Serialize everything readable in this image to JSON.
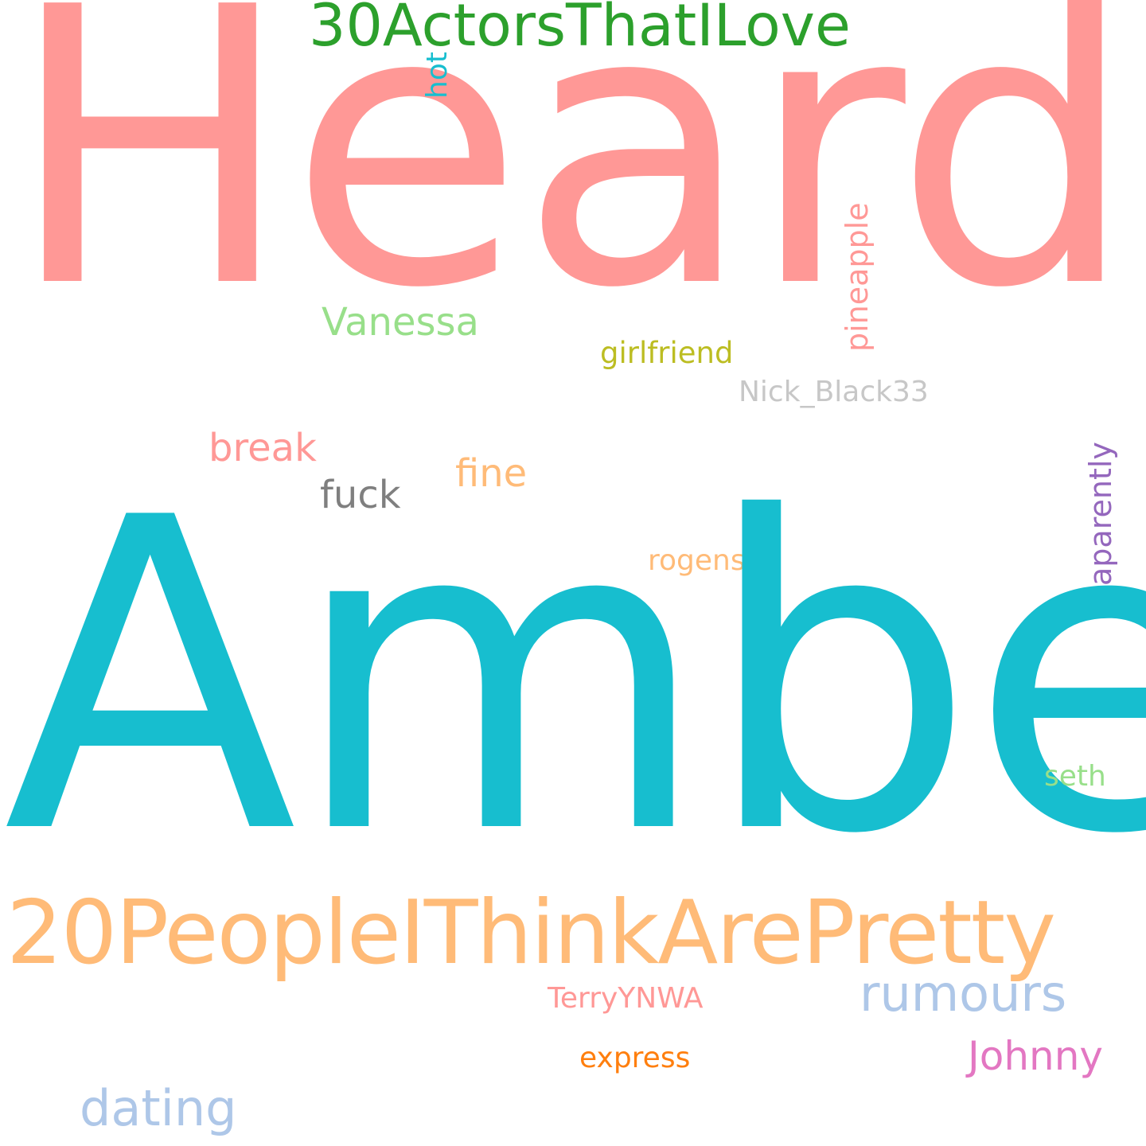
{
  "words": [
    {
      "key": "heard",
      "text": "Heard",
      "color": "#ff9896"
    },
    {
      "key": "amber",
      "text": "Amber",
      "color": "#17becf"
    },
    {
      "key": "30actors",
      "text": "30ActorsThatILove",
      "color": "#2ca02c"
    },
    {
      "key": "20people",
      "text": "20PeopleIThinkArePretty",
      "color": "#ffbb78"
    },
    {
      "key": "hot",
      "text": "hot",
      "color": "#17becf"
    },
    {
      "key": "pineapple",
      "text": "pineapple",
      "color": "#ff9896"
    },
    {
      "key": "vanessa",
      "text": "Vanessa",
      "color": "#98df8a"
    },
    {
      "key": "girlfriend",
      "text": "girlfriend",
      "color": "#bcbd22"
    },
    {
      "key": "nick",
      "text": "Nick_Black33",
      "color": "#c7c7c7"
    },
    {
      "key": "break",
      "text": "break",
      "color": "#ff9896"
    },
    {
      "key": "fuck",
      "text": "fuck",
      "color": "#7f7f7f"
    },
    {
      "key": "fine",
      "text": "fine",
      "color": "#ffbb78"
    },
    {
      "key": "aparently",
      "text": "aparently",
      "color": "#9467bd"
    },
    {
      "key": "rogens",
      "text": "rogens",
      "color": "#ffbb78"
    },
    {
      "key": "seth",
      "text": "seth",
      "color": "#98df8a"
    },
    {
      "key": "rumours",
      "text": "rumours",
      "color": "#aec7e8"
    },
    {
      "key": "terry",
      "text": "TerryYNWA",
      "color": "#ff9896"
    },
    {
      "key": "johnny",
      "text": "Johnny",
      "color": "#e377c2"
    },
    {
      "key": "express",
      "text": "express",
      "color": "#ff7f0e"
    },
    {
      "key": "dating",
      "text": "dating",
      "color": "#aec7e8"
    }
  ]
}
